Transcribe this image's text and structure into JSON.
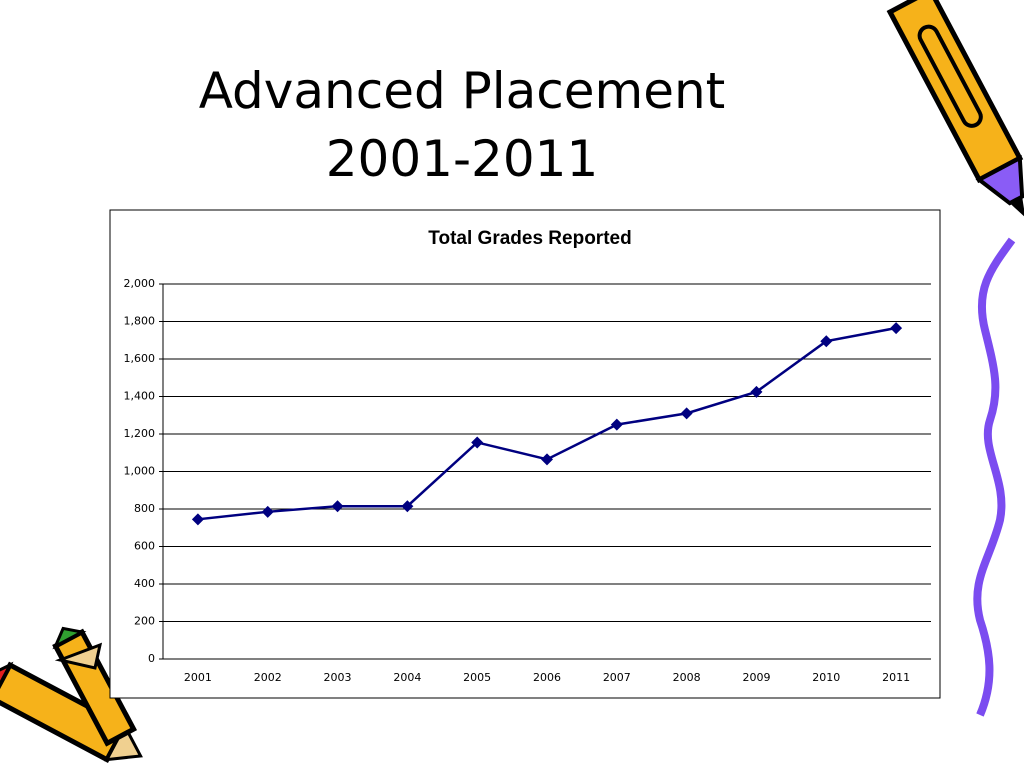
{
  "slide": {
    "title_lines": [
      "Advanced Placement",
      "2001-2011"
    ]
  },
  "chart_data": {
    "type": "line",
    "title": "Total Grades Reported",
    "categories": [
      "2001",
      "2002",
      "2003",
      "2004",
      "2005",
      "2006",
      "2007",
      "2008",
      "2009",
      "2010",
      "2011"
    ],
    "values": [
      745,
      785,
      815,
      815,
      1155,
      1065,
      1250,
      1310,
      1425,
      1695,
      1765
    ],
    "color": "#000080",
    "ylim": [
      0,
      2000
    ],
    "yticks": [
      0,
      200,
      400,
      600,
      800,
      {
        "value": 1000,
        "label": "1,000"
      },
      {
        "value": 1200,
        "label": "1,200"
      },
      {
        "value": 1400,
        "label": "1,400"
      },
      {
        "value": 1600,
        "label": "1,600"
      },
      {
        "value": 1800,
        "label": "1,800"
      },
      {
        "value": 2000,
        "label": "2,000"
      }
    ],
    "grid": true
  }
}
